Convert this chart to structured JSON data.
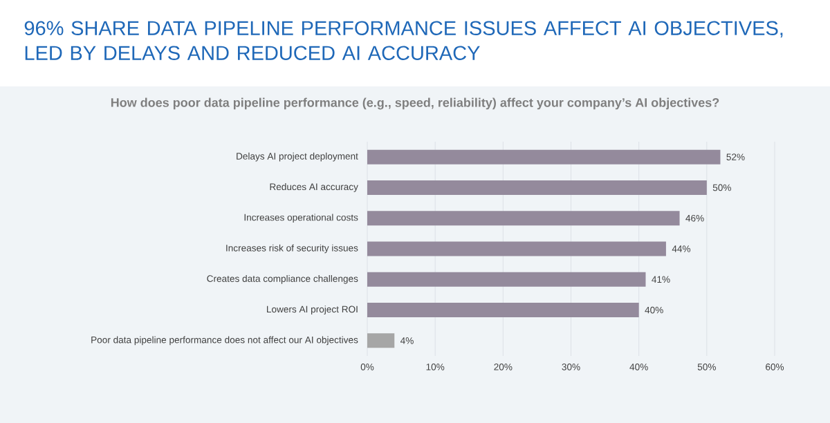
{
  "chart_data": {
    "type": "bar",
    "orientation": "horizontal",
    "title": "96% SHARE DATA PIPELINE PERFORMANCE ISSUES AFFECT AI OBJECTIVES, LED BY DELAYS AND REDUCED AI ACCURACY",
    "subtitle": "How does poor data pipeline performance (e.g., speed, reliability) affect your company’s AI objectives?",
    "categories": [
      "Delays AI project deployment",
      "Reduces AI accuracy",
      "Increases operational costs",
      "Increases risk of security issues",
      "Creates data compliance challenges",
      "Lowers AI project ROI",
      "Poor data pipeline performance does not affect our AI objectives"
    ],
    "values": [
      52,
      50,
      46,
      44,
      41,
      40,
      4
    ],
    "colors": [
      "#948a9c",
      "#948a9c",
      "#948a9c",
      "#948a9c",
      "#948a9c",
      "#948a9c",
      "#a6a6a6"
    ],
    "value_labels": [
      "52%",
      "50%",
      "46%",
      "44%",
      "41%",
      "40%",
      "4%"
    ],
    "xlim": [
      0,
      60
    ],
    "xticks": [
      {
        "value": 0,
        "label": "0%"
      },
      {
        "value": 10,
        "label": "10%"
      },
      {
        "value": 20,
        "label": "20%"
      },
      {
        "value": 30,
        "label": "30%"
      },
      {
        "value": 40,
        "label": "40%"
      },
      {
        "value": 50,
        "label": "50%"
      },
      {
        "value": 60,
        "label": "60%"
      }
    ],
    "grid": "x"
  }
}
